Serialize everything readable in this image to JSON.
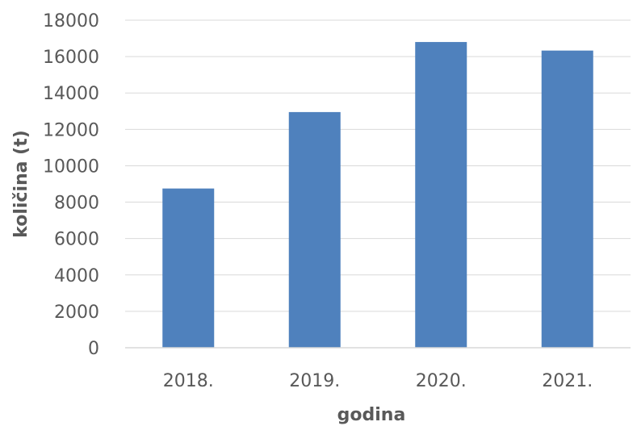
{
  "chart_data": {
    "type": "bar",
    "title": "",
    "xlabel": "godina",
    "ylabel": "količina (t)",
    "categories": [
      "2018.",
      "2019.",
      "2020.",
      "2021."
    ],
    "values": [
      8750,
      12950,
      16800,
      16330
    ],
    "ylim": [
      0,
      18000
    ],
    "yticks": [
      0,
      2000,
      4000,
      6000,
      8000,
      10000,
      12000,
      14000,
      16000,
      18000
    ],
    "ytick_labels": [
      "0",
      "2000",
      "4000",
      "6000",
      "8000",
      "10000",
      "12000",
      "14000",
      "16000",
      "18000"
    ],
    "grid": true,
    "legend": "none",
    "colors": {
      "bar": "#4f81bd",
      "grid": "#d9d9d9",
      "text": "#595959"
    }
  }
}
